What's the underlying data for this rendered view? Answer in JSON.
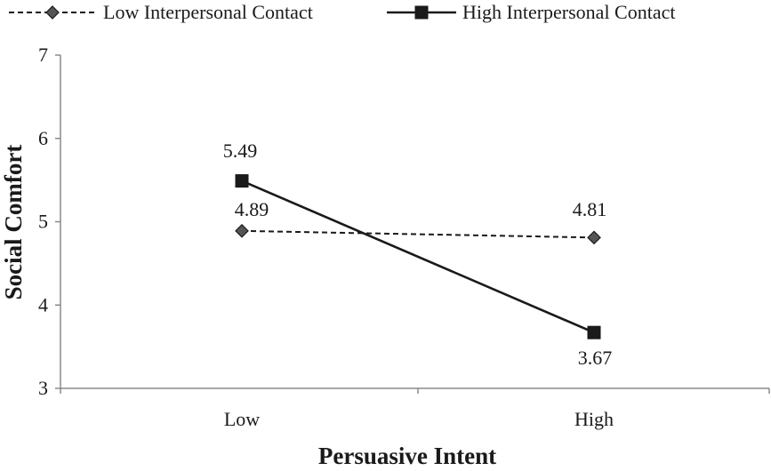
{
  "chart_data": {
    "type": "line",
    "title": "",
    "xlabel": "Persuasive Intent",
    "ylabel": "Social Comfort",
    "categories": [
      "Low",
      "High"
    ],
    "ylim": [
      3,
      7
    ],
    "yticks": [
      3,
      4,
      5,
      6,
      7
    ],
    "grid": false,
    "legend_position": "top",
    "series": [
      {
        "name": "Low Interpersonal Contact",
        "values": [
          4.89,
          4.81
        ],
        "labels": [
          "4.89",
          "4.81"
        ],
        "line_style": "dashed",
        "marker": "diamond",
        "marker_color": "#555555",
        "line_color": "#1a1a1a"
      },
      {
        "name": "High Interpersonal Contact",
        "values": [
          5.49,
          3.67
        ],
        "labels": [
          "5.49",
          "3.67"
        ],
        "line_style": "solid",
        "marker": "square",
        "marker_color": "#1a1a1a",
        "line_color": "#1a1a1a"
      }
    ]
  }
}
